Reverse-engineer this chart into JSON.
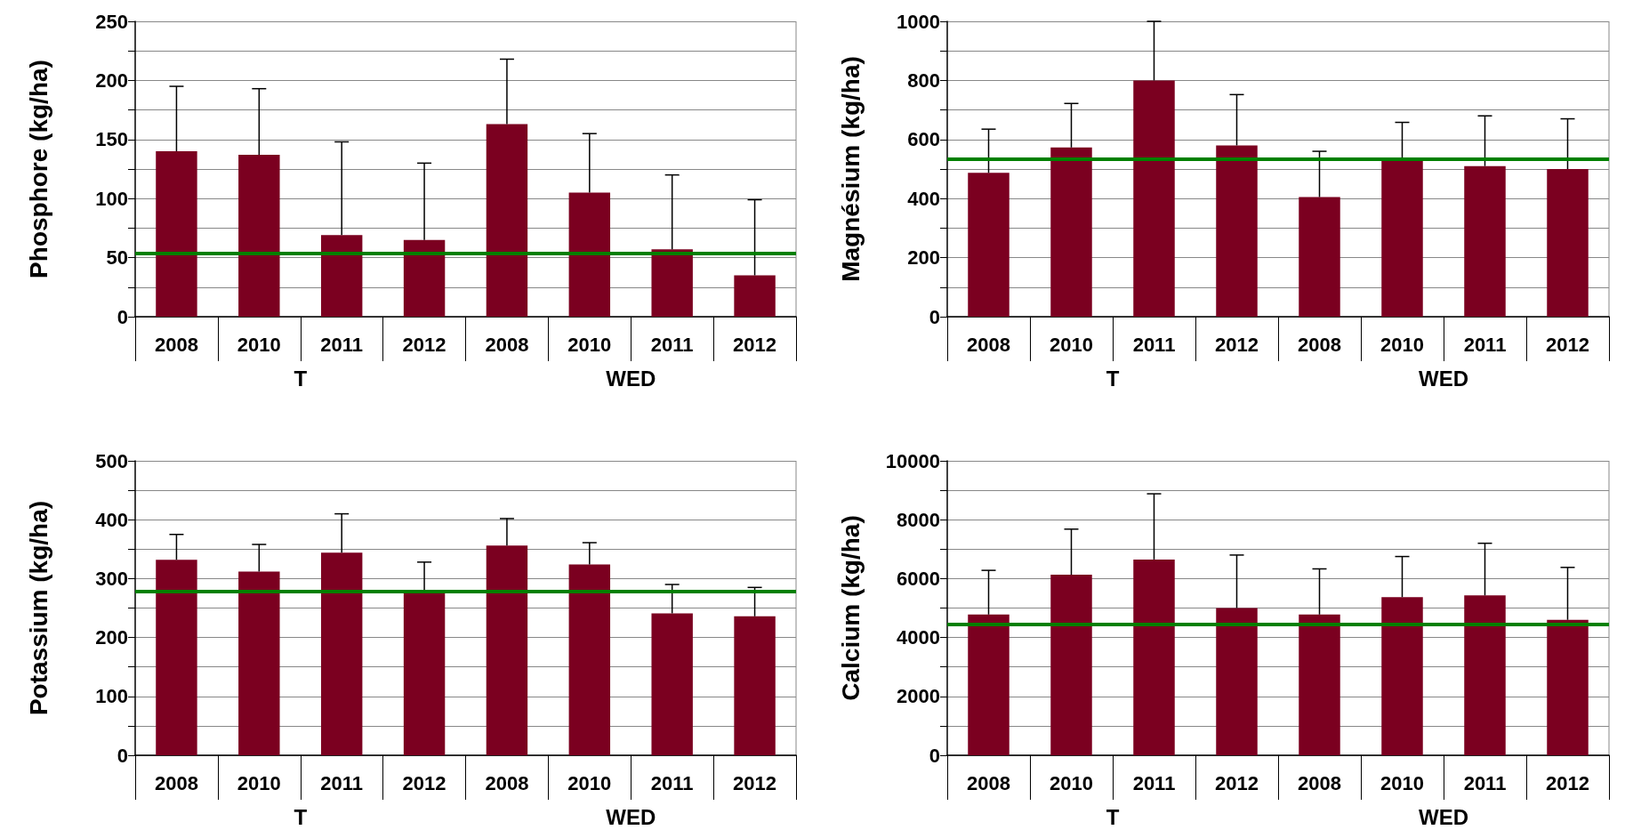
{
  "chart_data": [
    {
      "type": "bar",
      "ylabel": "Phosphore (kg/ha)",
      "categories": [
        "2008",
        "2010",
        "2011",
        "2012",
        "2008",
        "2010",
        "2011",
        "2012"
      ],
      "annotations": [
        "T",
        "WED"
      ],
      "series": [
        {
          "color": "#7b0020",
          "values": [
            140,
            137,
            69,
            65,
            163,
            105,
            57,
            35
          ],
          "errors": [
            [
              140,
              195
            ],
            [
              137,
              193
            ],
            [
              69,
              148
            ],
            [
              65,
              130
            ],
            [
              163,
              218
            ],
            [
              105,
              155
            ],
            [
              57,
              120
            ],
            [
              35,
              99
            ]
          ]
        }
      ],
      "ylim": [
        0,
        250
      ],
      "yticks": [
        0,
        {
          "value": 25,
          "label": null
        },
        50,
        {
          "value": 75,
          "label": null
        },
        100,
        {
          "value": 125,
          "label": null
        },
        150,
        {
          "value": 175,
          "label": null
        },
        200,
        {
          "value": 225,
          "label": null
        },
        250
      ],
      "ref_lines": [
        {
          "axis": "y",
          "value": 54,
          "color": "#008000"
        }
      ],
      "grid": "y"
    },
    {
      "type": "bar",
      "ylabel": "Magnésium (kg/ha)",
      "categories": [
        "2008",
        "2010",
        "2011",
        "2012",
        "2008",
        "2010",
        "2011",
        "2012"
      ],
      "annotations": [
        "T",
        "WED"
      ],
      "series": [
        {
          "color": "#7b0020",
          "values": [
            487,
            573,
            800,
            580,
            405,
            530,
            510,
            500
          ],
          "errors": [
            [
              487,
              635
            ],
            [
              573,
              722
            ],
            [
              800,
              1000
            ],
            [
              580,
              752
            ],
            [
              405,
              560
            ],
            [
              530,
              658
            ],
            [
              510,
              680
            ],
            [
              500,
              670
            ]
          ]
        }
      ],
      "ylim": [
        0,
        1000
      ],
      "yticks": [
        0,
        {
          "value": 100,
          "label": null
        },
        200,
        {
          "value": 300,
          "label": null
        },
        400,
        {
          "value": 500,
          "label": null
        },
        600,
        {
          "value": 700,
          "label": null
        },
        800,
        {
          "value": 900,
          "label": null
        },
        1000
      ],
      "ref_lines": [
        {
          "axis": "y",
          "value": 535,
          "color": "#008000"
        }
      ],
      "grid": "y"
    },
    {
      "type": "bar",
      "ylabel": "Potassium (kg/ha)",
      "categories": [
        "2008",
        "2010",
        "2011",
        "2012",
        "2008",
        "2010",
        "2011",
        "2012"
      ],
      "annotations": [
        "T",
        "WED"
      ],
      "series": [
        {
          "color": "#7b0020",
          "values": [
            332,
            312,
            344,
            277,
            356,
            324,
            241,
            236
          ],
          "errors": [
            [
              332,
              375
            ],
            [
              312,
              358
            ],
            [
              344,
              410
            ],
            [
              277,
              328
            ],
            [
              356,
              402
            ],
            [
              324,
              361
            ],
            [
              241,
              290
            ],
            [
              236,
              285
            ]
          ]
        }
      ],
      "ylim": [
        0,
        500
      ],
      "yticks": [
        0,
        {
          "value": 50,
          "label": null
        },
        100,
        {
          "value": 150,
          "label": null
        },
        200,
        {
          "value": 250,
          "label": null
        },
        300,
        {
          "value": 350,
          "label": null
        },
        400,
        {
          "value": 450,
          "label": null
        },
        500
      ],
      "ref_lines": [
        {
          "axis": "y",
          "value": 278,
          "color": "#008000"
        }
      ],
      "grid": "y"
    },
    {
      "type": "bar",
      "ylabel": "Calcium (kg/ha)",
      "categories": [
        "2008",
        "2010",
        "2011",
        "2012",
        "2008",
        "2010",
        "2011",
        "2012"
      ],
      "annotations": [
        "T",
        "WED"
      ],
      "series": [
        {
          "color": "#7b0020",
          "values": [
            4780,
            6130,
            6650,
            5000,
            4780,
            5370,
            5430,
            4600
          ],
          "errors": [
            [
              4780,
              6280
            ],
            [
              6130,
              7680
            ],
            [
              6650,
              8880
            ],
            [
              5000,
              6800
            ],
            [
              4780,
              6330
            ],
            [
              5370,
              6750
            ],
            [
              5430,
              7200
            ],
            [
              4600,
              6380
            ]
          ]
        }
      ],
      "ylim": [
        0,
        10000
      ],
      "yticks": [
        0,
        {
          "value": 1000,
          "label": null
        },
        2000,
        {
          "value": 3000,
          "label": null
        },
        4000,
        {
          "value": 5000,
          "label": null
        },
        6000,
        {
          "value": 7000,
          "label": null
        },
        8000,
        {
          "value": 9000,
          "label": null
        },
        10000
      ],
      "ref_lines": [
        {
          "axis": "y",
          "value": 4450,
          "color": "#008000"
        }
      ],
      "grid": "y"
    }
  ]
}
